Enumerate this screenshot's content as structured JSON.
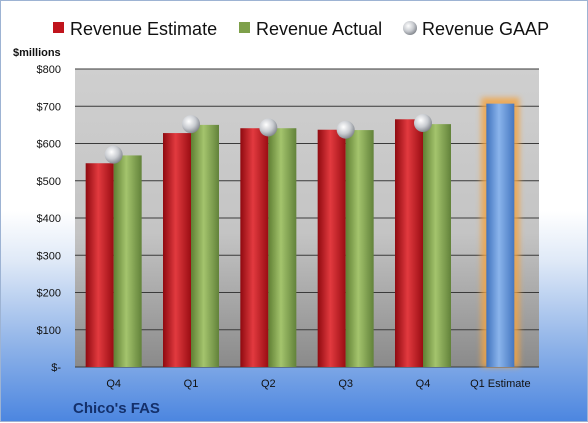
{
  "chart_data": {
    "type": "bar",
    "company": "Chico's FAS",
    "ylabel": "$millions",
    "ylim": [
      0,
      800
    ],
    "yticks": [
      {
        "value": 0,
        "label": "$-"
      },
      {
        "value": 100,
        "label": "$100"
      },
      {
        "value": 200,
        "label": "$200"
      },
      {
        "value": 300,
        "label": "$300"
      },
      {
        "value": 400,
        "label": "$400"
      },
      {
        "value": 500,
        "label": "$500"
      },
      {
        "value": 600,
        "label": "$600"
      },
      {
        "value": 700,
        "label": "$700"
      },
      {
        "value": 800,
        "label": "$800"
      }
    ],
    "categories": [
      "Q4",
      "Q1",
      "Q2",
      "Q3",
      "Q4",
      "Q1 Estimate"
    ],
    "series": [
      {
        "name": "Revenue Estimate",
        "type": "bar",
        "color": "#c0141c",
        "values": [
          547,
          628,
          641,
          637,
          665,
          null
        ]
      },
      {
        "name": "Revenue Actual",
        "type": "bar",
        "color": "#7ea04a",
        "values": [
          568,
          650,
          641,
          636,
          652,
          null
        ]
      },
      {
        "name": "Revenue GAAP",
        "type": "marker",
        "color": "#b8bcc2",
        "values": [
          570,
          652,
          643,
          637,
          655,
          null
        ]
      },
      {
        "name": "Q1 Estimate",
        "type": "bar",
        "color": "#5a8fd6",
        "highlight": "#f2a444",
        "values": [
          null,
          null,
          null,
          null,
          null,
          707
        ]
      }
    ],
    "grid": true,
    "legend": "top"
  }
}
